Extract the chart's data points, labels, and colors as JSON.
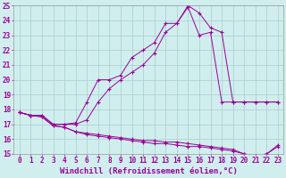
{
  "background_color": "#d0eeee",
  "line_color": "#990099",
  "grid_color": "#aacccc",
  "xlabel": "Windchill (Refroidissement éolien,°C)",
  "xlabel_fontsize": 6.5,
  "xtick_fontsize": 5.5,
  "ytick_fontsize": 5.5,
  "ylim": [
    15,
    25
  ],
  "xlim": [
    -0.5,
    23.5
  ],
  "yticks": [
    15,
    16,
    17,
    18,
    19,
    20,
    21,
    22,
    23,
    24,
    25
  ],
  "xticks": [
    0,
    1,
    2,
    3,
    4,
    5,
    6,
    7,
    8,
    9,
    10,
    11,
    12,
    13,
    14,
    15,
    16,
    17,
    18,
    19,
    20,
    21,
    22,
    23
  ],
  "curve1_y": [
    17.8,
    17.6,
    17.6,
    17.0,
    17.0,
    17.1,
    18.5,
    20.0,
    20.0,
    20.3,
    21.5,
    22.0,
    22.5,
    23.8,
    23.8,
    24.9,
    23.0,
    23.2,
    18.5,
    18.5,
    18.5,
    18.5,
    18.5,
    18.5
  ],
  "curve2_y": [
    17.8,
    17.6,
    17.6,
    17.0,
    17.0,
    17.0,
    17.3,
    18.5,
    19.4,
    20.0,
    20.5,
    21.0,
    21.8,
    23.2,
    23.8,
    25.0,
    24.5,
    23.5,
    23.2,
    18.5,
    18.5,
    18.5,
    18.5,
    18.5
  ],
  "curve3_y": [
    17.8,
    17.6,
    17.5,
    16.9,
    16.8,
    16.5,
    16.4,
    16.3,
    16.2,
    16.1,
    16.0,
    15.9,
    15.9,
    15.8,
    15.8,
    15.7,
    15.6,
    15.5,
    15.4,
    15.3,
    15.0,
    14.9,
    15.0,
    15.6
  ],
  "curve4_y": [
    17.8,
    17.6,
    17.5,
    16.9,
    16.8,
    16.5,
    16.3,
    16.2,
    16.1,
    16.0,
    15.9,
    15.8,
    15.7,
    15.7,
    15.6,
    15.5,
    15.5,
    15.4,
    15.3,
    15.2,
    15.0,
    14.85,
    15.0,
    15.5
  ]
}
